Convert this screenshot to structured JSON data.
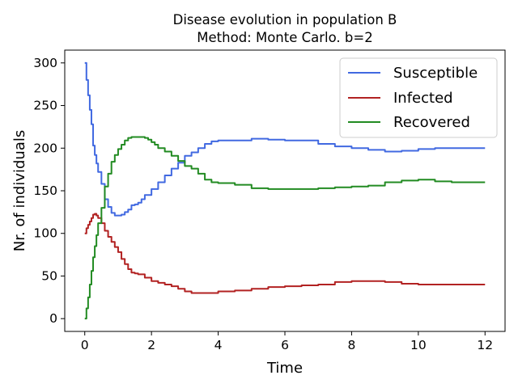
{
  "chart_data": {
    "type": "line",
    "title": "Disease evolution in population B",
    "subtitle": "Method: Monte Carlo. b=2",
    "xlabel": "Time",
    "ylabel": "Nr. of individuals",
    "xlim": [
      -0.6,
      12.6
    ],
    "ylim": [
      -15,
      315
    ],
    "xticks": [
      0,
      2,
      4,
      6,
      8,
      10,
      12
    ],
    "yticks": [
      0,
      50,
      100,
      150,
      200,
      250,
      300
    ],
    "grid": false,
    "legend_position": "top-right",
    "series": [
      {
        "name": "Susceptible",
        "color": "#4169e1",
        "x": [
          0,
          0.05,
          0.1,
          0.15,
          0.2,
          0.25,
          0.3,
          0.35,
          0.4,
          0.5,
          0.6,
          0.7,
          0.8,
          0.9,
          1.0,
          1.1,
          1.2,
          1.3,
          1.4,
          1.5,
          1.6,
          1.7,
          1.8,
          2.0,
          2.2,
          2.4,
          2.6,
          2.8,
          3.0,
          3.2,
          3.4,
          3.6,
          3.8,
          4.0,
          4.5,
          5.0,
          5.5,
          6.0,
          6.5,
          7.0,
          7.5,
          8.0,
          8.5,
          9.0,
          9.5,
          10.0,
          10.5,
          11.0,
          12.0
        ],
        "y": [
          300,
          280,
          262,
          245,
          228,
          203,
          192,
          182,
          172,
          158,
          140,
          131,
          124,
          121,
          121,
          122,
          125,
          128,
          133,
          134,
          136,
          140,
          145,
          152,
          160,
          168,
          176,
          183,
          191,
          195,
          200,
          205,
          208,
          209,
          209,
          211,
          210,
          209,
          209,
          205,
          202,
          200,
          198,
          196,
          197,
          199,
          200,
          200,
          200
        ]
      },
      {
        "name": "Infected",
        "color": "#b22222",
        "x": [
          0,
          0.05,
          0.1,
          0.15,
          0.2,
          0.25,
          0.3,
          0.35,
          0.4,
          0.5,
          0.6,
          0.7,
          0.8,
          0.9,
          1.0,
          1.1,
          1.2,
          1.3,
          1.4,
          1.5,
          1.6,
          1.8,
          2.0,
          2.2,
          2.4,
          2.6,
          2.8,
          3.0,
          3.2,
          3.5,
          4.0,
          4.5,
          5.0,
          5.5,
          6.0,
          6.5,
          7.0,
          7.5,
          8.0,
          8.5,
          9.0,
          9.5,
          10.0,
          11.0,
          12.0
        ],
        "y": [
          100,
          106,
          110,
          114,
          118,
          122,
          123,
          121,
          118,
          112,
          103,
          96,
          90,
          84,
          78,
          70,
          64,
          58,
          54,
          53,
          52,
          48,
          44,
          42,
          40,
          38,
          35,
          32,
          30,
          30,
          32,
          33,
          35,
          37,
          38,
          39,
          40,
          43,
          44,
          44,
          43,
          41,
          40,
          40,
          40
        ]
      },
      {
        "name": "Recovered",
        "color": "#228b22",
        "x": [
          0,
          0.05,
          0.1,
          0.15,
          0.2,
          0.25,
          0.3,
          0.35,
          0.4,
          0.5,
          0.6,
          0.7,
          0.8,
          0.9,
          1.0,
          1.1,
          1.2,
          1.3,
          1.4,
          1.5,
          1.6,
          1.7,
          1.8,
          1.9,
          2.0,
          2.1,
          2.2,
          2.4,
          2.6,
          2.8,
          3.0,
          3.2,
          3.4,
          3.6,
          3.8,
          4.0,
          4.5,
          5.0,
          5.5,
          6.0,
          6.5,
          7.0,
          7.5,
          8.0,
          8.5,
          9.0,
          9.5,
          10.0,
          10.5,
          11.0,
          12.0
        ],
        "y": [
          0,
          12,
          25,
          40,
          56,
          72,
          85,
          98,
          112,
          130,
          155,
          170,
          184,
          192,
          199,
          204,
          209,
          212,
          213,
          213,
          213,
          213,
          212,
          210,
          207,
          204,
          200,
          196,
          191,
          185,
          179,
          176,
          170,
          163,
          160,
          159,
          157,
          153,
          152,
          152,
          152,
          153,
          154,
          155,
          156,
          160,
          162,
          163,
          161,
          160,
          160
        ]
      }
    ]
  }
}
